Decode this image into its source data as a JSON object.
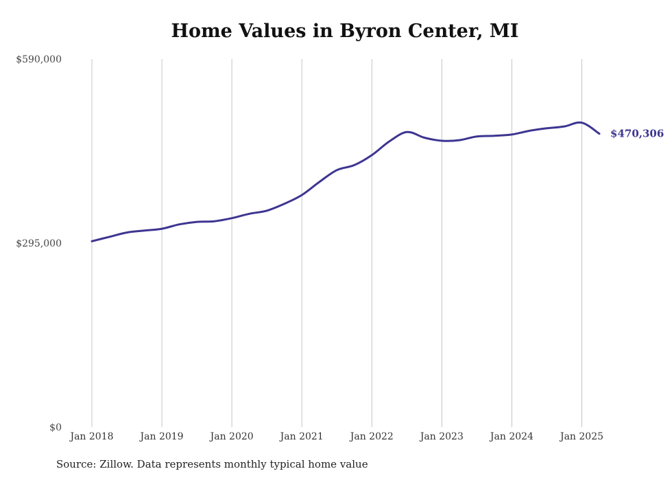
{
  "chart_data": {
    "type": "line",
    "title": "Home Values in Byron Center, MI",
    "xlabel": "",
    "ylabel": "",
    "ylim": [
      0,
      590000
    ],
    "y_ticks": [
      "$590,000",
      "$295,000",
      "$0"
    ],
    "x_ticks": [
      "Jan 2018",
      "Jan 2019",
      "Jan 2020",
      "Jan 2021",
      "Jan 2022",
      "Jan 2023",
      "Jan 2024",
      "Jan 2025"
    ],
    "grid": "vertical",
    "line_color": "#3d3591",
    "end_label": "$470,306",
    "series": [
      {
        "x": [
          2018.0,
          2018.25,
          2018.5,
          2018.75,
          2019.0,
          2019.25,
          2019.5,
          2019.75,
          2020.0,
          2020.25,
          2020.5,
          2020.75,
          2021.0,
          2021.25,
          2021.5,
          2021.75,
          2022.0,
          2022.25,
          2022.5,
          2022.75,
          2023.0,
          2023.25,
          2023.5,
          2023.75,
          2024.0,
          2024.25,
          2024.5,
          2024.75,
          2025.0,
          2025.25
        ],
        "values": [
          298000,
          305000,
          312000,
          315000,
          318000,
          325000,
          329000,
          330000,
          335000,
          342000,
          347000,
          358000,
          372000,
          393000,
          412000,
          420000,
          436000,
          458000,
          473000,
          464000,
          459000,
          460000,
          466000,
          467000,
          469000,
          475000,
          479000,
          482000,
          488000,
          470306
        ]
      }
    ]
  },
  "source_note": "Source: Zillow. Data represents monthly typical home value"
}
